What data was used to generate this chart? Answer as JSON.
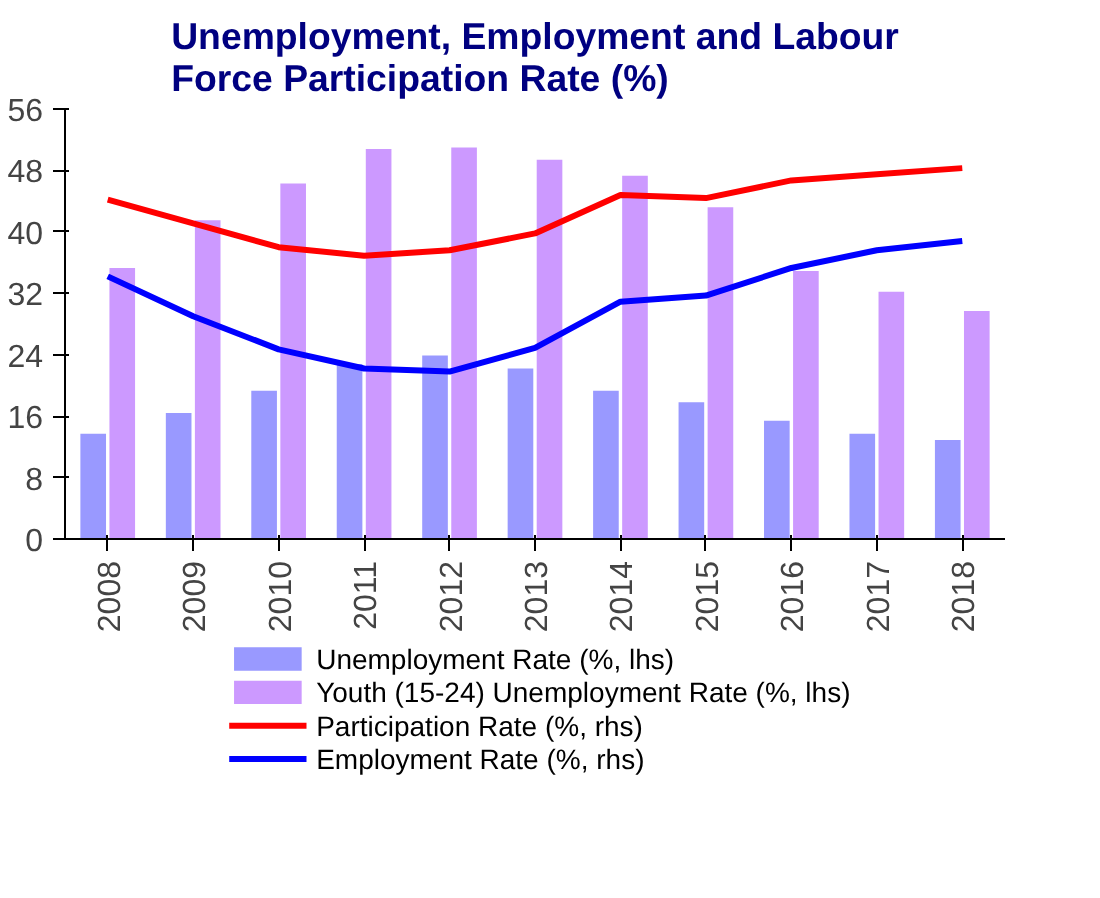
{
  "chart_data": {
    "type": "bar",
    "title": "Unemployment, Employment and Labour Force Participation Rate (%)",
    "categories": [
      "2008",
      "2009",
      "2010",
      "2011",
      "2012",
      "2013",
      "2014",
      "2015",
      "2016",
      "2017",
      "2018"
    ],
    "series": [
      {
        "name": "Unemployment Rate (%, lhs)",
        "color": "#9999ff",
        "values": [
          13.7,
          16.4,
          19.3,
          22.8,
          23.9,
          22.2,
          19.3,
          17.8,
          15.4,
          13.7,
          12.9
        ]
      },
      {
        "name": "Youth (15-24) Unemployment Rate (%, lhs)",
        "color": "#cc99ff",
        "values": [
          35.3,
          41.5,
          46.3,
          50.8,
          51.0,
          49.4,
          47.3,
          43.2,
          34.9,
          32.2,
          29.7
        ]
      },
      {
        "name": "Participation Rate (%, rhs)",
        "type": "line",
        "color": "#ff0000",
        "values": [
          44.2,
          41.1,
          38.0,
          36.9,
          37.6,
          39.8,
          44.8,
          44.4,
          46.7,
          47.5,
          48.3
        ]
      },
      {
        "name": "Employment Rate (%, rhs)",
        "type": "line",
        "color": "#0000ff",
        "values": [
          34.2,
          29.0,
          24.7,
          22.2,
          21.8,
          24.9,
          30.9,
          31.7,
          35.3,
          37.6,
          38.8
        ]
      }
    ],
    "ylim": [
      0,
      56
    ],
    "yticks": [
      0,
      8,
      16,
      24,
      32,
      40,
      48,
      56
    ],
    "grid": false,
    "legend": "bottom"
  }
}
